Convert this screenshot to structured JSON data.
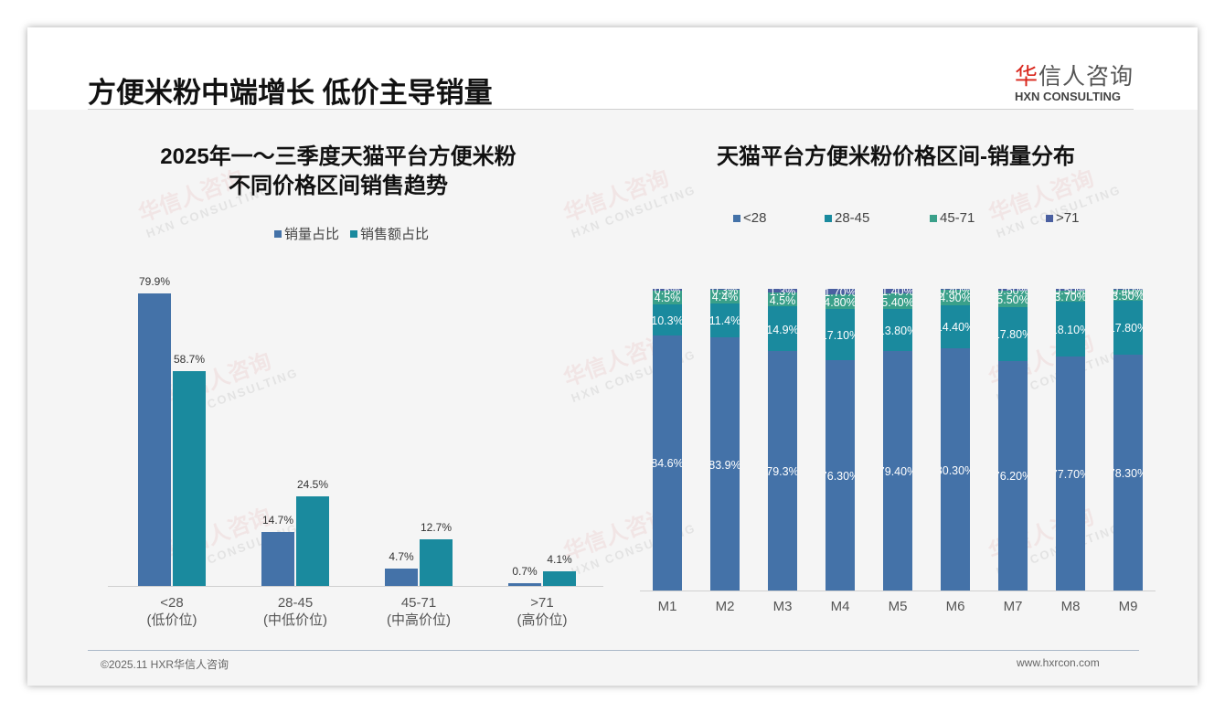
{
  "header": {
    "title": "方便米粉中端增长 低价主导销量",
    "logo_cn_first": "华",
    "logo_cn_rest": "信人咨询",
    "logo_en": "HXN CONSULTING"
  },
  "watermark": {
    "cn": "华信人咨询",
    "en": "HXN CONSULTING"
  },
  "footer": {
    "copyright": "©2025.11 HXR华信人咨询",
    "website": "www.hxrcon.com"
  },
  "colors": {
    "lt28": "#4472a8",
    "r28_45": "#1a8a9e",
    "r45_71": "#3aa08a",
    "gt71": "#4a5fa0",
    "sales_volume": "#4472a8",
    "sales_amount": "#1a8a9e"
  },
  "chart_data": [
    {
      "type": "bar",
      "title": "2025年一～三季度天猫平台方便米粉 不同价格区间销售趋势",
      "title_line1": "2025年一～三季度天猫平台方便米粉",
      "title_line2": "不同价格区间销售趋势",
      "categories": [
        "<28",
        "28-45",
        "45-71",
        ">71"
      ],
      "category_sublabels": [
        "(低价位)",
        "(中低价位)",
        "(中高价位)",
        "(高价位)"
      ],
      "series": [
        {
          "name": "销量占比",
          "values": [
            79.9,
            14.7,
            4.7,
            0.7
          ],
          "labels": [
            "79.9%",
            "14.7%",
            "4.7%",
            "0.7%"
          ]
        },
        {
          "name": "销售额占比",
          "values": [
            58.7,
            24.5,
            12.7,
            4.1
          ],
          "labels": [
            "58.7%",
            "24.5%",
            "12.7%",
            "4.1%"
          ]
        }
      ],
      "xlabel": "",
      "ylabel": "",
      "ylim": [
        0,
        100
      ],
      "legend_position": "top",
      "grid": false
    },
    {
      "type": "bar",
      "stacked": true,
      "percent": true,
      "title": "天猫平台方便米粉价格区间-销量分布",
      "categories": [
        "M1",
        "M2",
        "M3",
        "M4",
        "M5",
        "M6",
        "M7",
        "M8",
        "M9"
      ],
      "series": [
        {
          "name": "<28",
          "values": [
            84.6,
            83.9,
            79.3,
            76.3,
            79.4,
            80.3,
            76.2,
            77.7,
            78.3
          ],
          "labels": [
            "84.6%",
            "83.9%",
            "79.3%",
            "76.30%",
            "79.40%",
            "80.30%",
            "76.20%",
            "77.70%",
            "78.30%"
          ]
        },
        {
          "name": "28-45",
          "values": [
            10.3,
            11.4,
            14.9,
            17.1,
            13.8,
            14.4,
            17.8,
            18.1,
            17.8
          ],
          "labels": [
            "10.3%",
            "11.4%",
            "14.9%",
            "17.10%",
            "13.80%",
            "14.40%",
            "17.80%",
            "18.10%",
            "17.80%"
          ]
        },
        {
          "name": "45-71",
          "values": [
            4.5,
            4.4,
            4.5,
            4.8,
            5.4,
            4.9,
            5.5,
            3.7,
            3.5
          ],
          "labels": [
            "4.5%",
            "4.4%",
            "4.5%",
            "4.80%",
            "5.40%",
            "4.90%",
            "5.50%",
            "3.70%",
            "3.50%"
          ]
        },
        {
          "name": ">71",
          "values": [
            0.6,
            0.3,
            1.3,
            1.7,
            1.4,
            0.4,
            0.5,
            0.5,
            0.4
          ],
          "labels": [
            "0.6%",
            "0.3%",
            "1.3%",
            "1.70%",
            "1.40%",
            "0.40%",
            "0.50%",
            "0.50%",
            "0.40%"
          ]
        }
      ],
      "xlabel": "",
      "ylabel": "",
      "ylim": [
        0,
        100
      ],
      "legend_position": "top",
      "grid": false
    }
  ]
}
